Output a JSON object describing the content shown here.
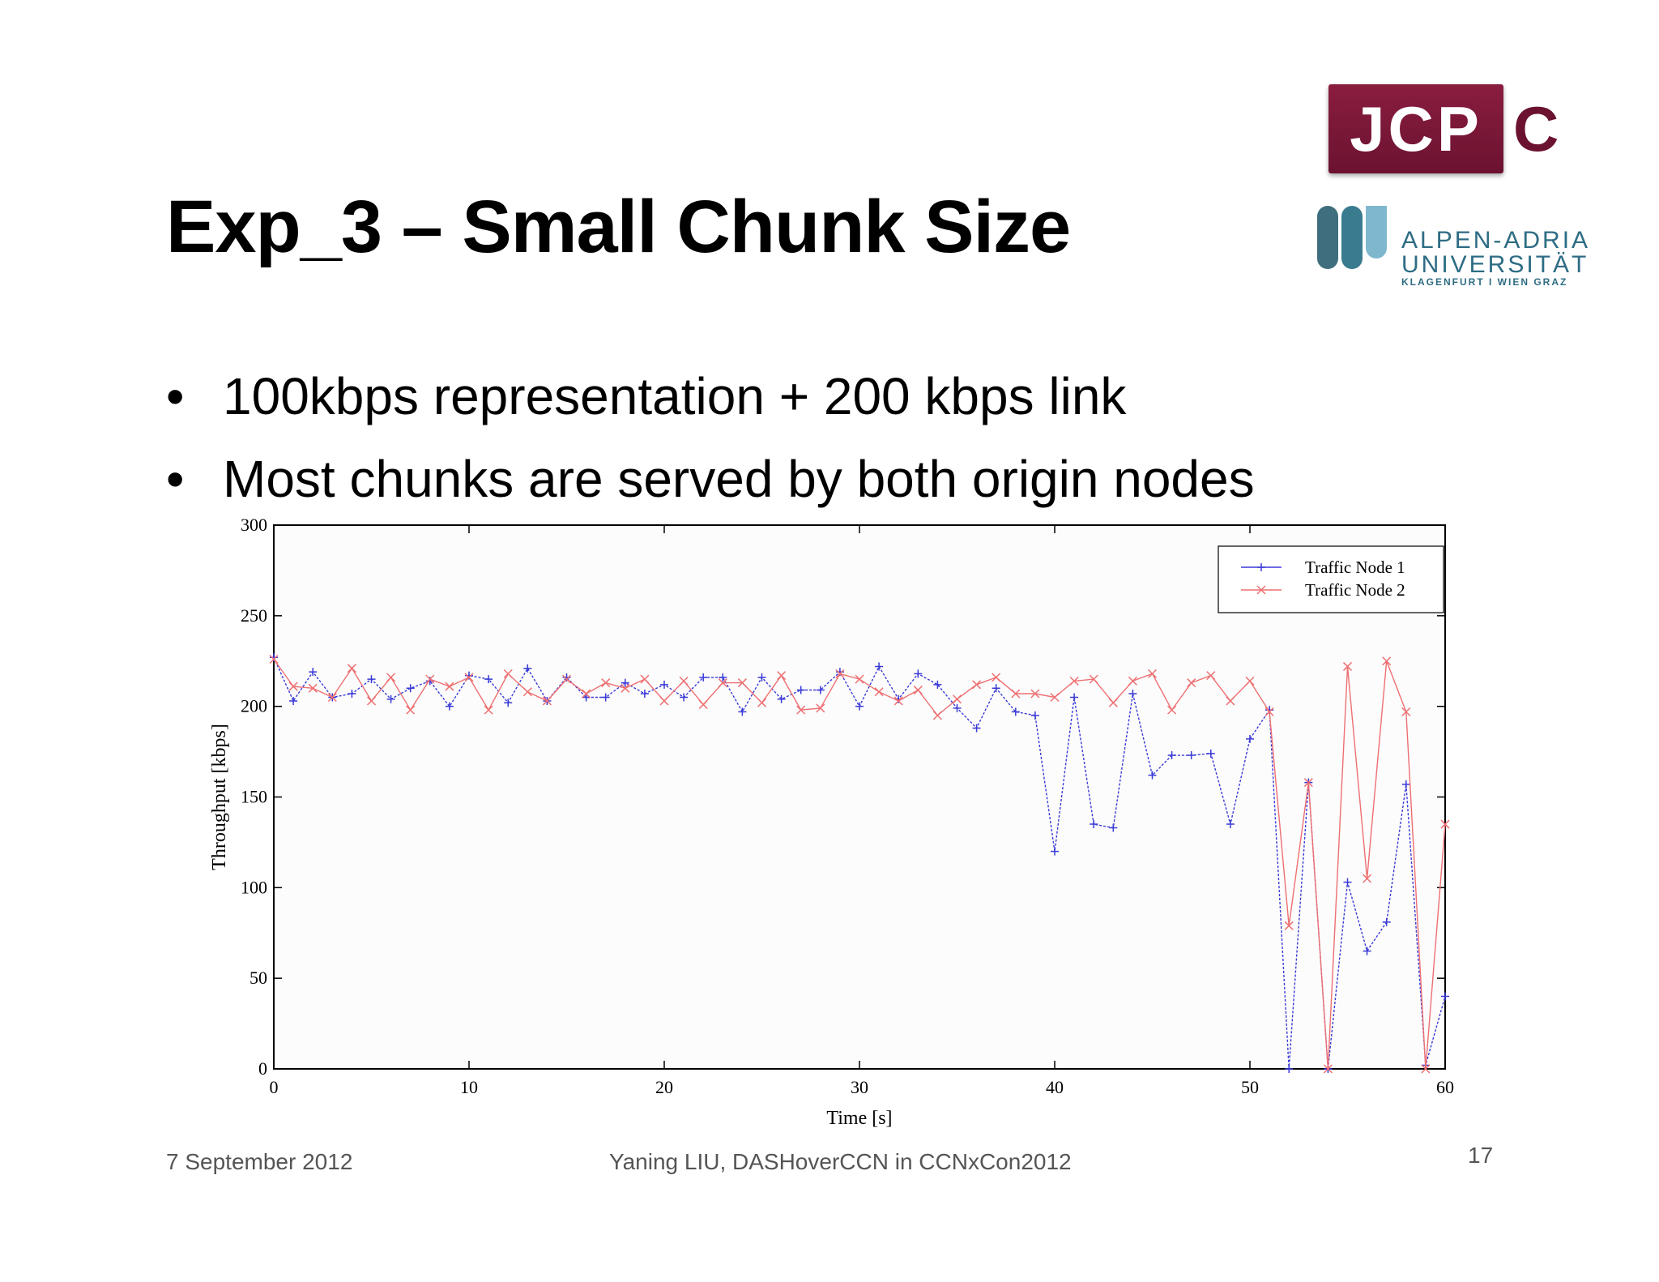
{
  "slide": {
    "title": "Exp_3 – Small Chunk Size",
    "bullets": [
      "100kbps representation + 200 kbps link",
      "Most chunks are served by both origin nodes"
    ]
  },
  "logos": {
    "jcp": "JCP",
    "jcp_suffix": "C",
    "aau_name_1": "ALPEN-ADRIA",
    "aau_name_2": "UNIVERSITÄT",
    "aau_sub": "KLAGENFURT I WIEN GRAZ"
  },
  "footer": {
    "date": "7 September 2012",
    "center": "Yaning LIU, DASHoverCCN in CCNxCon2012",
    "page": "17"
  },
  "colors": {
    "node1": "#3a3ad8",
    "node2": "#ee6f72",
    "logo_red": "#6b1230",
    "logo_blue": "#2e6c84"
  },
  "chart_data": {
    "type": "line",
    "xlabel": "Time [s]",
    "ylabel": "Throughput [kbps]",
    "xlim": [
      0,
      60
    ],
    "ylim": [
      0,
      300
    ],
    "xticks": [
      0,
      10,
      20,
      30,
      40,
      50,
      60
    ],
    "yticks": [
      0,
      50,
      100,
      150,
      200,
      250,
      300
    ],
    "legend": "top-right",
    "x": [
      0,
      1,
      2,
      3,
      4,
      5,
      6,
      7,
      8,
      9,
      10,
      11,
      12,
      13,
      14,
      15,
      16,
      17,
      18,
      19,
      20,
      21,
      22,
      23,
      24,
      25,
      26,
      27,
      28,
      29,
      30,
      31,
      32,
      33,
      34,
      35,
      36,
      37,
      38,
      39,
      40,
      41,
      42,
      43,
      44,
      45,
      46,
      47,
      48,
      49,
      50,
      51,
      52,
      53,
      54,
      55,
      56,
      57,
      58,
      59,
      60
    ],
    "series": [
      {
        "name": "Traffic Node 1",
        "marker": "+",
        "values": [
          227,
          203,
          219,
          205,
          207,
          215,
          204,
          210,
          214,
          200,
          217,
          215,
          202,
          221,
          203,
          216,
          205,
          205,
          213,
          207,
          212,
          205,
          216,
          216,
          197,
          216,
          204,
          209,
          209,
          219,
          200,
          222,
          204,
          218,
          212,
          199,
          188,
          210,
          197,
          195,
          120,
          205,
          135,
          133,
          207,
          162,
          173,
          173,
          174,
          135,
          182,
          198,
          0,
          158,
          0,
          103,
          65,
          81,
          157,
          2,
          40
        ]
      },
      {
        "name": "Traffic Node 2",
        "marker": "x",
        "values": [
          226,
          211,
          210,
          205,
          221,
          203,
          216,
          198,
          215,
          211,
          216,
          198,
          218,
          208,
          203,
          215,
          207,
          213,
          210,
          215,
          203,
          214,
          201,
          213,
          213,
          202,
          217,
          198,
          199,
          218,
          215,
          208,
          203,
          209,
          195,
          204,
          212,
          216,
          207,
          207,
          205,
          214,
          215,
          202,
          214,
          218,
          198,
          213,
          217,
          203,
          214,
          197,
          79,
          158,
          0,
          222,
          105,
          225,
          197,
          0,
          135
        ]
      }
    ]
  }
}
